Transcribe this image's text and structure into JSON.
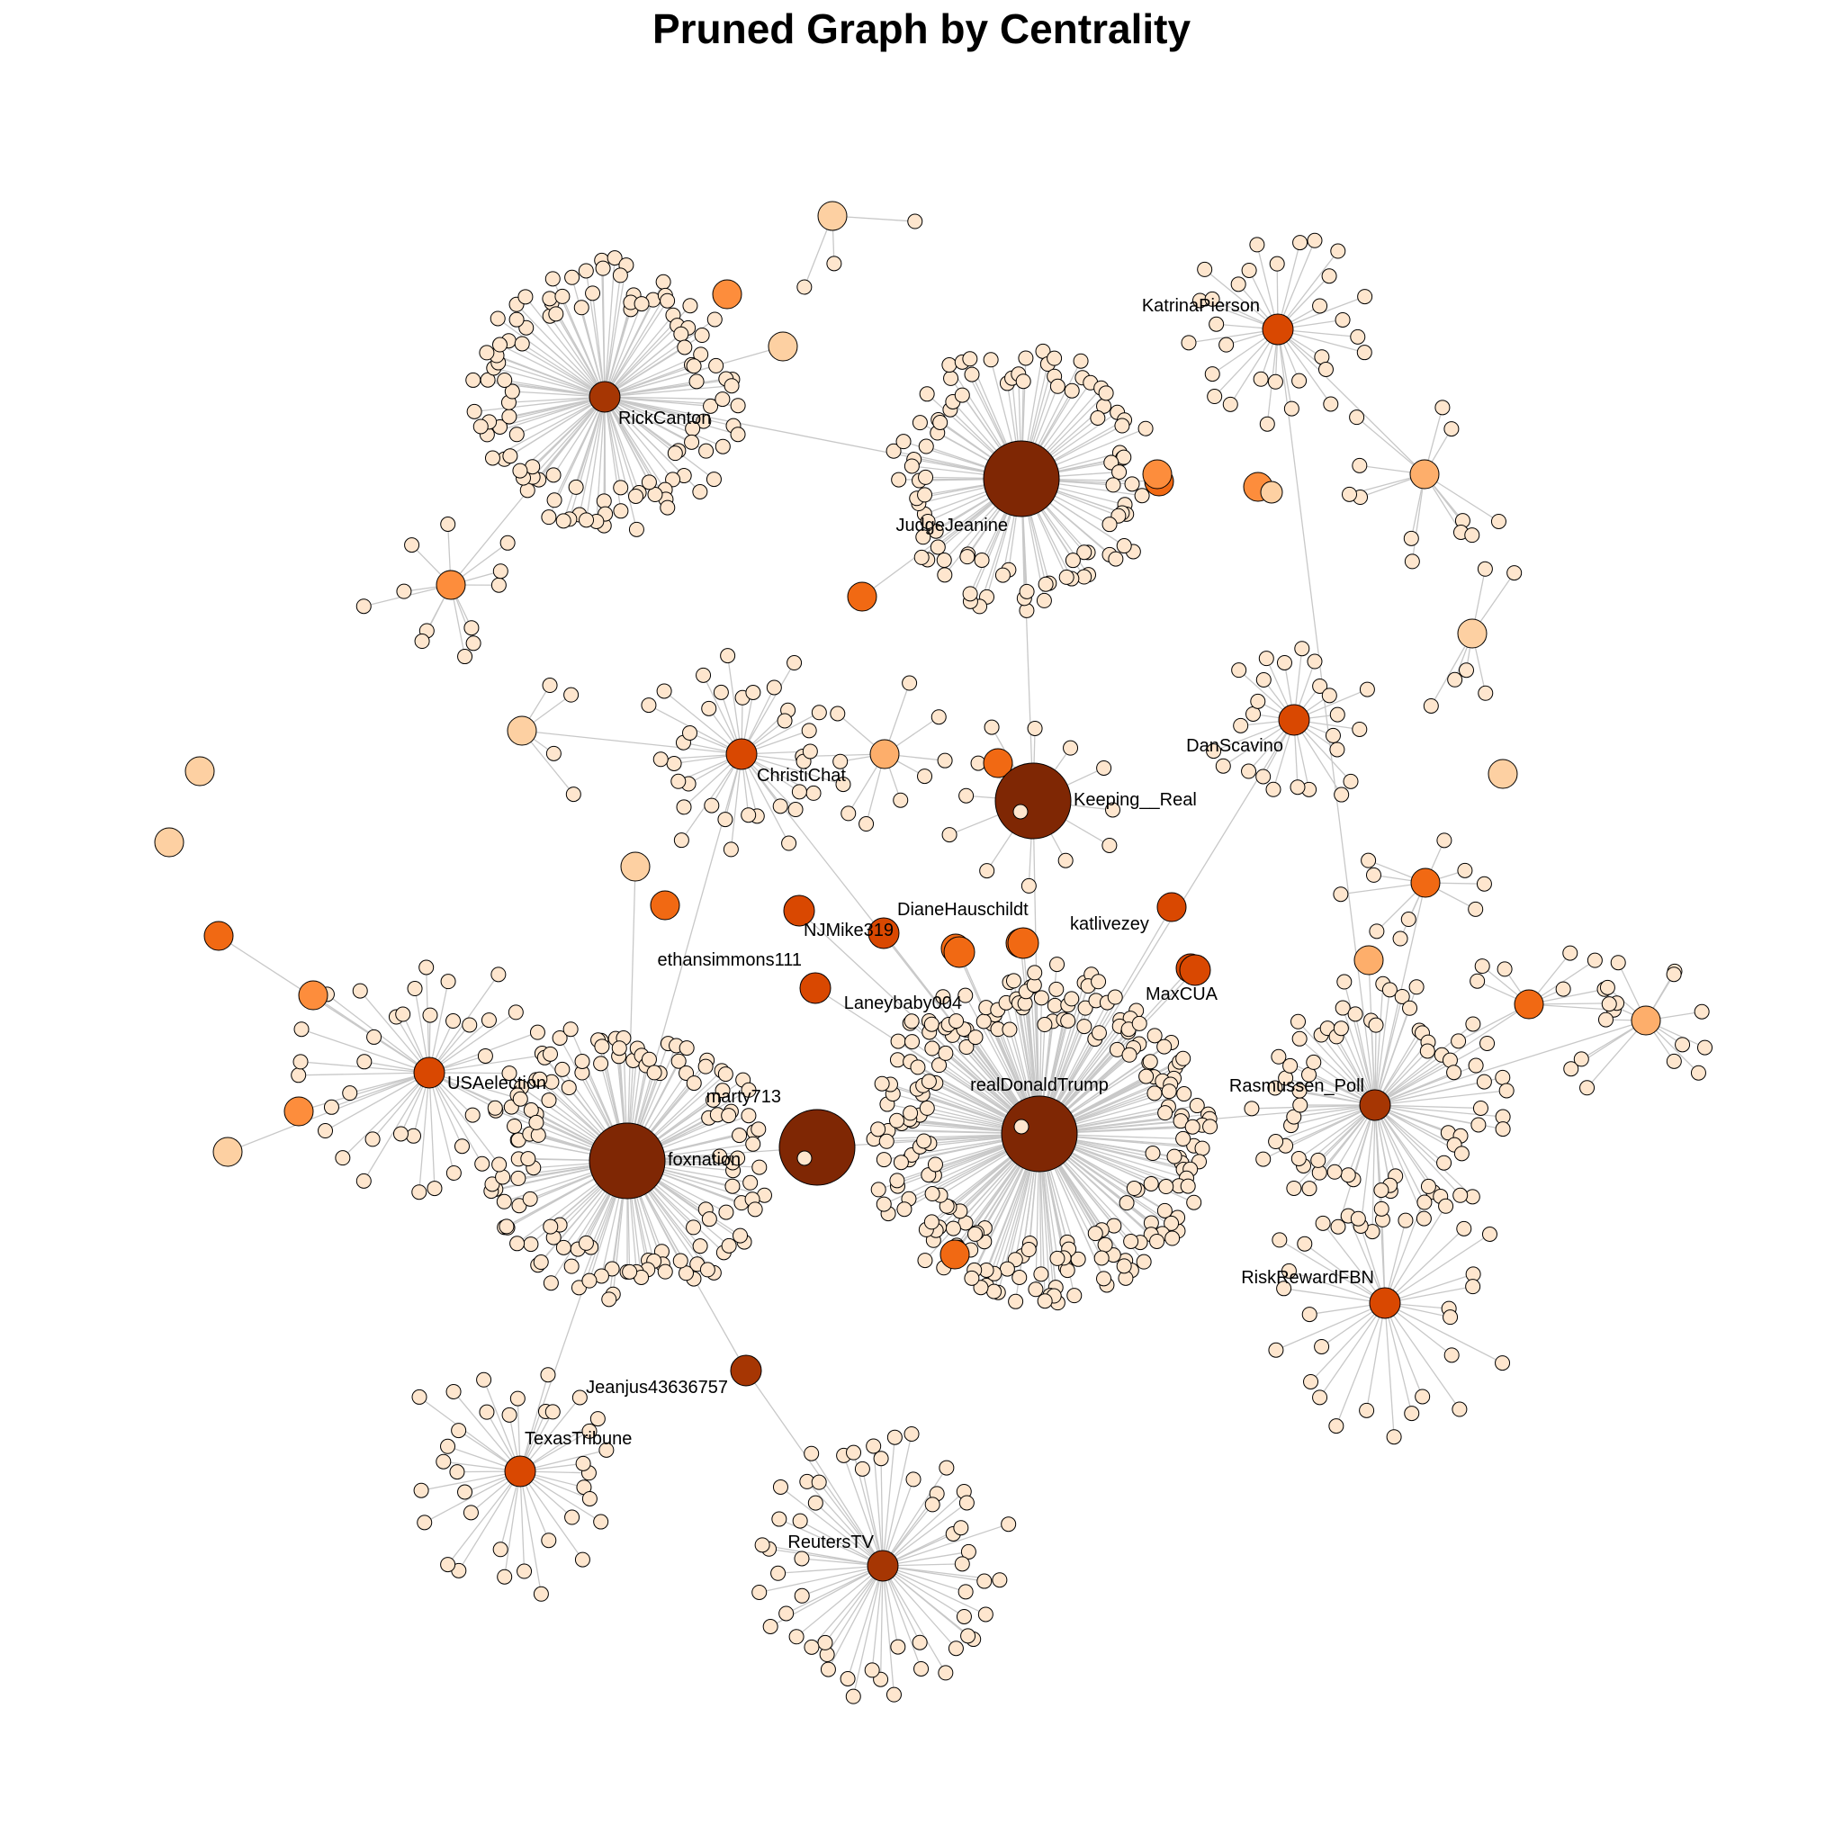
{
  "title": "Pruned Graph by Centrality",
  "palette": {
    "level0": "#fee6ce",
    "level1": "#fdd0a2",
    "level2": "#fdae6b",
    "level3": "#fd8d3c",
    "level4": "#f16913",
    "level5": "#d94801",
    "level6": "#a63603",
    "level7": "#7f2704",
    "edge": "#c8c8c8",
    "node_border": "#000000"
  },
  "hubs": [
    {
      "id": "realDonaldTrump",
      "label": "realDonaldTrump",
      "level": 7,
      "leaves": 230
    },
    {
      "id": "foxnation",
      "label": "foxnation",
      "level": 7,
      "leaves": 130
    },
    {
      "id": "marty713",
      "label": "marty713",
      "level": 7,
      "leaves": 2
    },
    {
      "id": "JudgeJeanine",
      "label": "JudgeJeanine",
      "level": 7,
      "leaves": 95
    },
    {
      "id": "Keeping__Real",
      "label": "Keeping__Real",
      "level": 7,
      "leaves": 12
    },
    {
      "id": "RickCanton",
      "label": "RickCanton",
      "level": 6,
      "leaves": 110
    },
    {
      "id": "Rasmussen_Poll",
      "label": "Rasmussen_Poll",
      "level": 6,
      "leaves": 75
    },
    {
      "id": "ReutersTV",
      "label": "ReutersTV",
      "level": 6,
      "leaves": 55
    },
    {
      "id": "Jeanjus43636757",
      "label": "Jeanjus43636757",
      "level": 6,
      "leaves": 0
    },
    {
      "id": "KatrinaPierson",
      "label": "KatrinaPierson",
      "level": 5,
      "leaves": 30
    },
    {
      "id": "DanScavino",
      "label": "DanScavino",
      "level": 5,
      "leaves": 25
    },
    {
      "id": "ChristiChat",
      "label": "ChristiChat",
      "level": 5,
      "leaves": 35
    },
    {
      "id": "USAelection",
      "label": "USAelection",
      "level": 5,
      "leaves": 40
    },
    {
      "id": "TexasTribune",
      "label": "TexasTribune",
      "level": 5,
      "leaves": 35
    },
    {
      "id": "RiskRewardFBN",
      "label": "RiskRewardFBN",
      "level": 5,
      "leaves": 30
    },
    {
      "id": "NJMike319",
      "label": "NJMike319",
      "level": 5,
      "leaves": 0
    },
    {
      "id": "DianeHauschildt",
      "label": "DianeHauschildt",
      "level": 5,
      "leaves": 0
    },
    {
      "id": "ethansimmons111",
      "label": "ethansimmons111",
      "level": 5,
      "leaves": 0
    },
    {
      "id": "Laneybaby004",
      "label": "Laneybaby004",
      "level": 4,
      "leaves": 0
    },
    {
      "id": "katlivezey",
      "label": "katlivezey",
      "level": 4,
      "leaves": 0
    },
    {
      "id": "MaxCUA",
      "label": "MaxCUA",
      "level": 5,
      "leaves": 0
    }
  ]
}
